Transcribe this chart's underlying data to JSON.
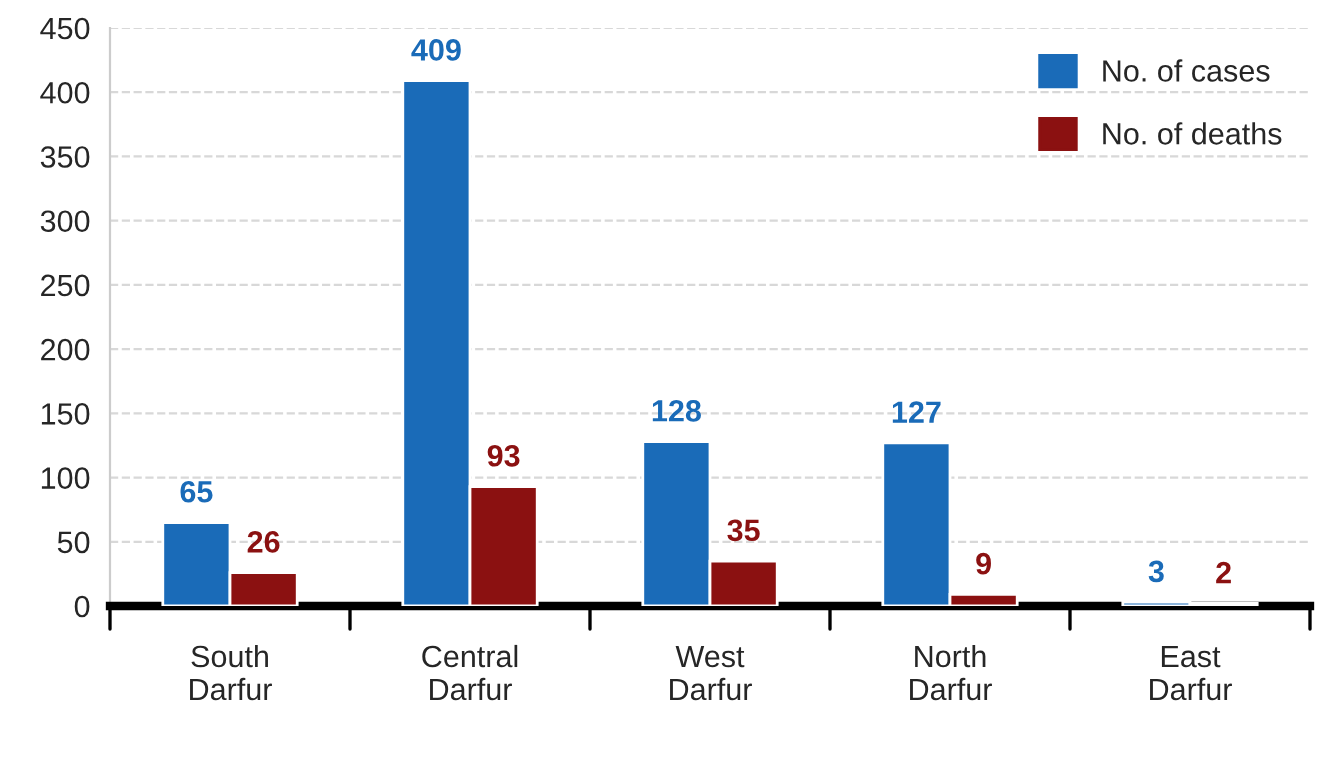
{
  "chart_data": {
    "type": "bar",
    "categories": [
      "South\nDarfur",
      "Central\nDarfur",
      "West\nDarfur",
      "North\nDarfur",
      "East\nDarfur"
    ],
    "series": [
      {
        "name": "No. of cases",
        "color": "#1a6bb8",
        "values": [
          65,
          409,
          128,
          127,
          3
        ]
      },
      {
        "name": "No. of deaths",
        "color": "#8b1111",
        "values": [
          26,
          93,
          35,
          9,
          2
        ]
      }
    ],
    "ylim": [
      0,
      450
    ],
    "yticks": [
      0,
      50,
      100,
      150,
      200,
      250,
      300,
      350,
      400,
      450
    ],
    "grid": "y",
    "legend": "top right",
    "data_labels": true
  }
}
